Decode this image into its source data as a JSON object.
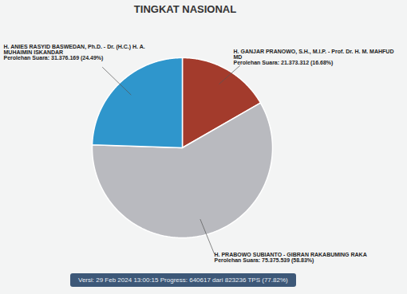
{
  "chart_data": {
    "type": "pie",
    "title": "TINGKAT NASIONAL",
    "categories": [
      "H. GANJAR PRANOWO, S.H., M.I.P. - Prof. Dr. H. M. MAHFUD MD",
      "H. PRABOWO SUBIANTO - GIBRAN RAKABUMING RAKA",
      "H. ANIES RASYID BASWEDAN, Ph.D. - Dr. (H.C.) H. A. MUHAIMIN ISKANDAR"
    ],
    "values": [
      21373312,
      75375539,
      31376169
    ],
    "value_labels": [
      "Perolehan Suara: 21.373.312 (16.68%)",
      "Perolehan Suara: 75.375.539 (58.83%)",
      "Perolehan Suara: 31.376.169 (24.49%)"
    ],
    "colors": [
      "#a33b2c",
      "#b9babf",
      "#2f96cc"
    ],
    "data_labels": true,
    "caption": "Versi: 29 Feb 2024 13:00:15 Progress: 640617 dari 823236 TPS (77.82%)"
  }
}
